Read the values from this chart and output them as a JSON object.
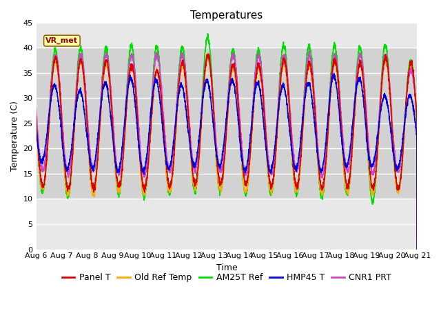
{
  "title": "Temperatures",
  "xlabel": "Time",
  "ylabel": "Temperature (C)",
  "ylim": [
    0,
    45
  ],
  "yticks": [
    0,
    5,
    10,
    15,
    20,
    25,
    30,
    35,
    40,
    45
  ],
  "x_tick_labels": [
    "Aug 6",
    "Aug 7",
    "Aug 8",
    "Aug 9",
    "Aug 10",
    "Aug 11",
    "Aug 12",
    "Aug 13",
    "Aug 14",
    "Aug 15",
    "Aug 16",
    "Aug 17",
    "Aug 18",
    "Aug 19",
    "Aug 20",
    "Aug 21"
  ],
  "station_label": "VR_met",
  "colors": {
    "Panel T": "#dd0000",
    "Old Ref Temp": "#ffaa00",
    "AM25T Ref": "#00dd00",
    "HMP45 T": "#0000dd",
    "CNR1 PRT": "#cc44cc"
  },
  "line_width": 1.2,
  "background_color": "#ffffff",
  "plot_bg_light": "#e8e8e8",
  "plot_bg_dark": "#d0d0d0",
  "title_fontsize": 11,
  "axis_label_fontsize": 9,
  "tick_fontsize": 8,
  "legend_fontsize": 9,
  "n_points": 3000,
  "band_light": "#e8e8e8",
  "band_dark": "#d2d2d2"
}
